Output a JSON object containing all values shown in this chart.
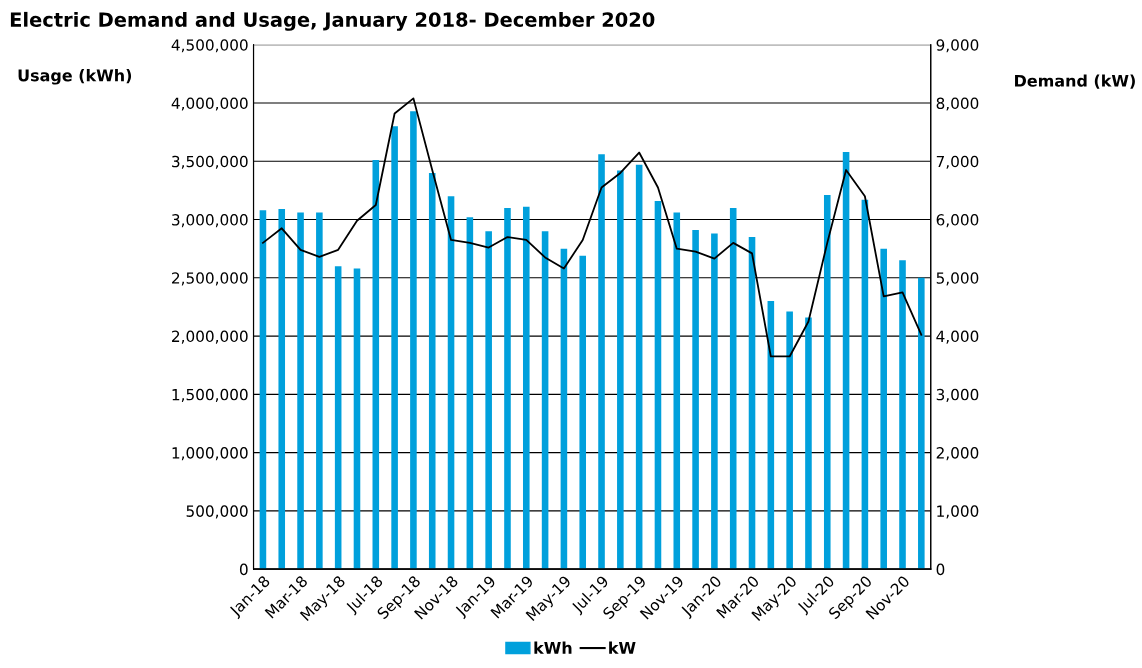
{
  "chart_data": {
    "type": "bar",
    "title": "Electric Demand and Usage, January 2018- December 2020",
    "categories": [
      "Jan-18",
      null,
      "Mar-18",
      null,
      "May-18",
      null,
      "Jul-18",
      null,
      "Sep-18",
      null,
      "Nov-18",
      null,
      "Jan-19",
      null,
      "Mar-19",
      null,
      "May-19",
      null,
      "Jul-19",
      null,
      "Sep-19",
      null,
      "Nov-19",
      null,
      "Jan-20",
      null,
      "Mar-20",
      null,
      "May-20",
      null,
      "Jul-20",
      null,
      "Sep-20",
      null,
      "Nov-20",
      null
    ],
    "series": [
      {
        "name": "kWh",
        "color": "#00a0dc",
        "values": [
          3080000,
          3090000,
          3060000,
          3060000,
          2600000,
          2580000,
          3510000,
          3800000,
          3930000,
          3400000,
          3200000,
          3020000,
          2900000,
          3100000,
          3110000,
          2900000,
          2750000,
          2690000,
          3560000,
          3420000,
          3470000,
          3160000,
          3060000,
          2910000,
          2880000,
          3100000,
          2850000,
          2300000,
          2210000,
          2160000,
          3210000,
          3580000,
          3170000,
          2750000,
          2650000,
          2500000
        ]
      },
      {
        "name": "kW",
        "type": "line",
        "axis": "y2",
        "color": "#000000",
        "values": [
          5600,
          5850,
          5480,
          5360,
          5480,
          5980,
          6250,
          7820,
          8080,
          6850,
          5650,
          5600,
          5520,
          5700,
          5650,
          5350,
          5160,
          5650,
          6550,
          6800,
          7150,
          6550,
          5500,
          5450,
          5330,
          5600,
          5420,
          3650,
          3650,
          4250,
          5600,
          6850,
          6400,
          4680,
          4750,
          4020
        ]
      }
    ],
    "ylabel": "Usage (kWh)",
    "y2label": "Demand (kW)",
    "ylim": [
      0,
      4500000
    ],
    "yticks": [
      {
        "value": 0,
        "label": "0"
      },
      {
        "value": 500000,
        "label": "500,000"
      },
      {
        "value": 1000000,
        "label": "1,000,000"
      },
      {
        "value": 1500000,
        "label": "1,500,000"
      },
      {
        "value": 2000000,
        "label": "2,000,000"
      },
      {
        "value": 2500000,
        "label": "2,500,000"
      },
      {
        "value": 3000000,
        "label": "3,000,000"
      },
      {
        "value": 3500000,
        "label": "3,500,000"
      },
      {
        "value": 4000000,
        "label": "4,000,000"
      },
      {
        "value": 4500000,
        "label": "4,500,000"
      }
    ],
    "y2lim": [
      0,
      9000
    ],
    "y2ticks": [
      {
        "value": 0,
        "label": "0"
      },
      {
        "value": 1000,
        "label": "1,000"
      },
      {
        "value": 2000,
        "label": "2,000"
      },
      {
        "value": 3000,
        "label": "3,000"
      },
      {
        "value": 4000,
        "label": "4,000"
      },
      {
        "value": 5000,
        "label": "5,000"
      },
      {
        "value": 6000,
        "label": "6,000"
      },
      {
        "value": 7000,
        "label": "7,000"
      },
      {
        "value": 8000,
        "label": "8,000"
      },
      {
        "value": 9000,
        "label": "9,000"
      }
    ],
    "grid": "y",
    "legend": "bottom",
    "marker": "none",
    "line_style": "solid"
  }
}
